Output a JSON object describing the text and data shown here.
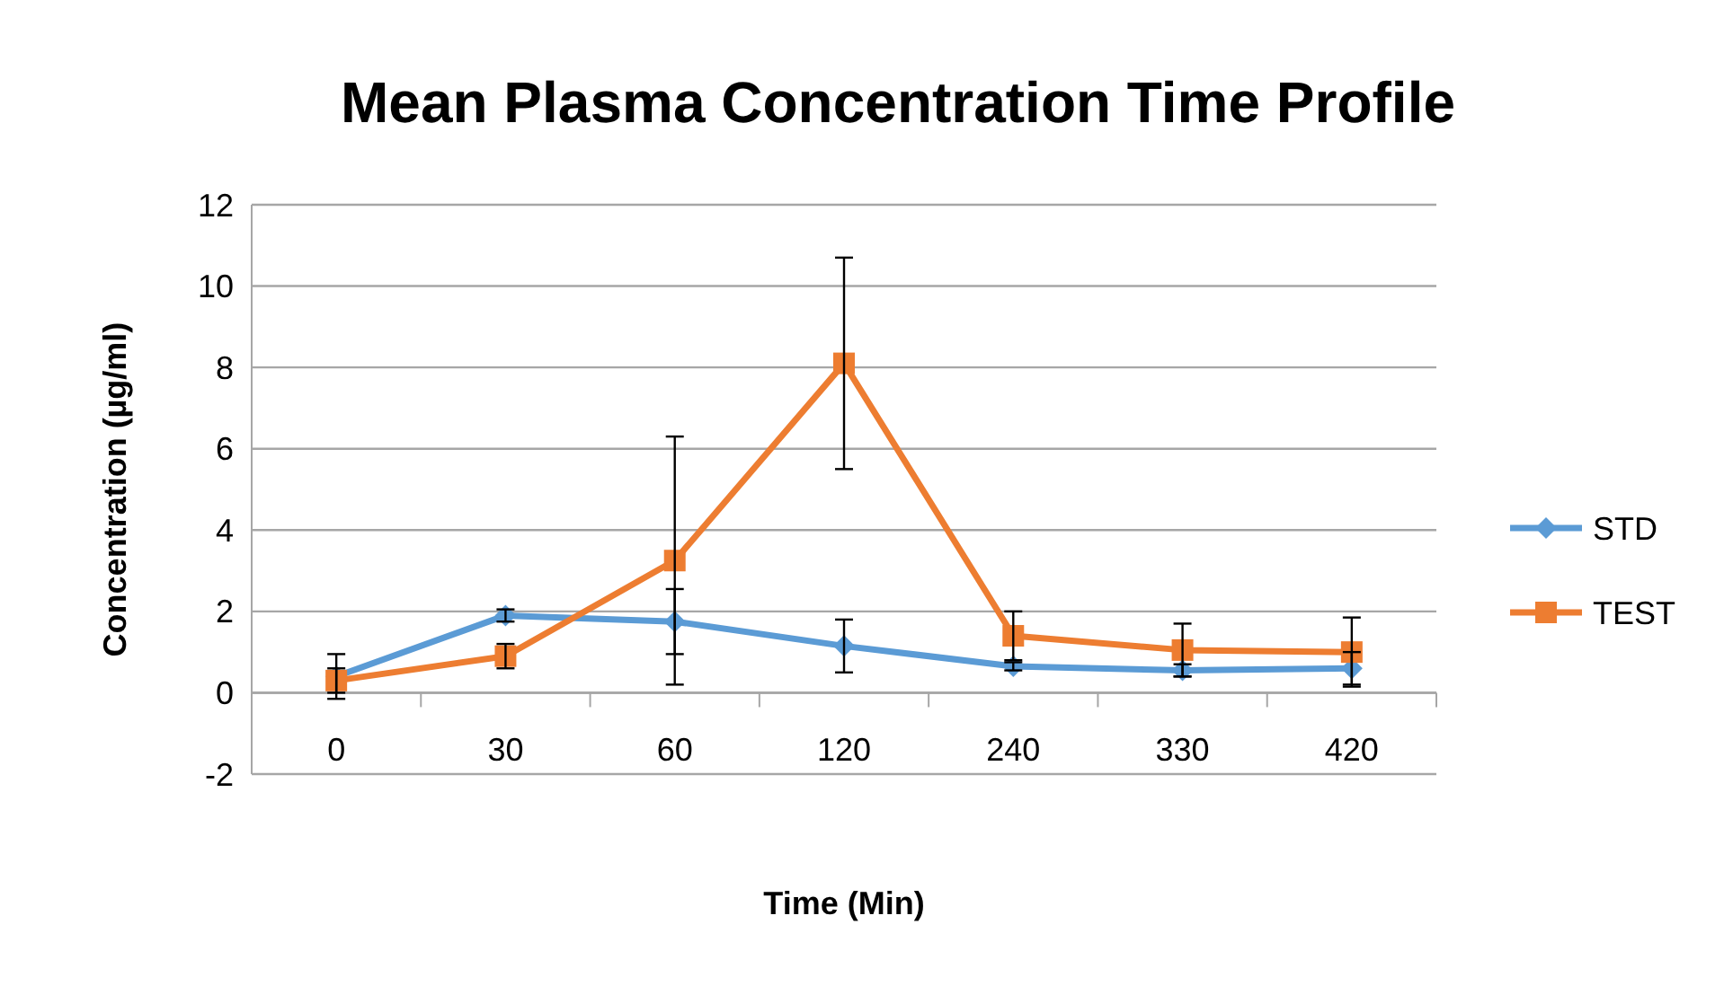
{
  "chart_data": {
    "type": "line",
    "title": "Mean Plasma Concentration Time Profile",
    "xlabel": "Time (Min)",
    "ylabel": "Concentration (µg/ml)",
    "categories": [
      "0",
      "30",
      "60",
      "120",
      "240",
      "330",
      "420"
    ],
    "series": [
      {
        "name": "STD",
        "color": "#5b9bd5",
        "marker": "diamond",
        "values": [
          0.4,
          1.9,
          1.75,
          1.15,
          0.65,
          0.55,
          0.6
        ],
        "errors": [
          0.55,
          0.15,
          0.8,
          0.65,
          0.1,
          0.15,
          0.4
        ]
      },
      {
        "name": "TEST",
        "color": "#ed7d31",
        "marker": "square",
        "values": [
          0.3,
          0.9,
          3.25,
          8.1,
          1.4,
          1.05,
          1.0
        ],
        "errors": [
          0.3,
          0.3,
          3.05,
          2.6,
          0.6,
          0.65,
          0.85
        ]
      }
    ],
    "ylim": [
      -2,
      12
    ],
    "yticks": [
      -2,
      0,
      2,
      4,
      6,
      8,
      10,
      12
    ],
    "grid": "y",
    "legend": "right",
    "line_style": "solid"
  }
}
